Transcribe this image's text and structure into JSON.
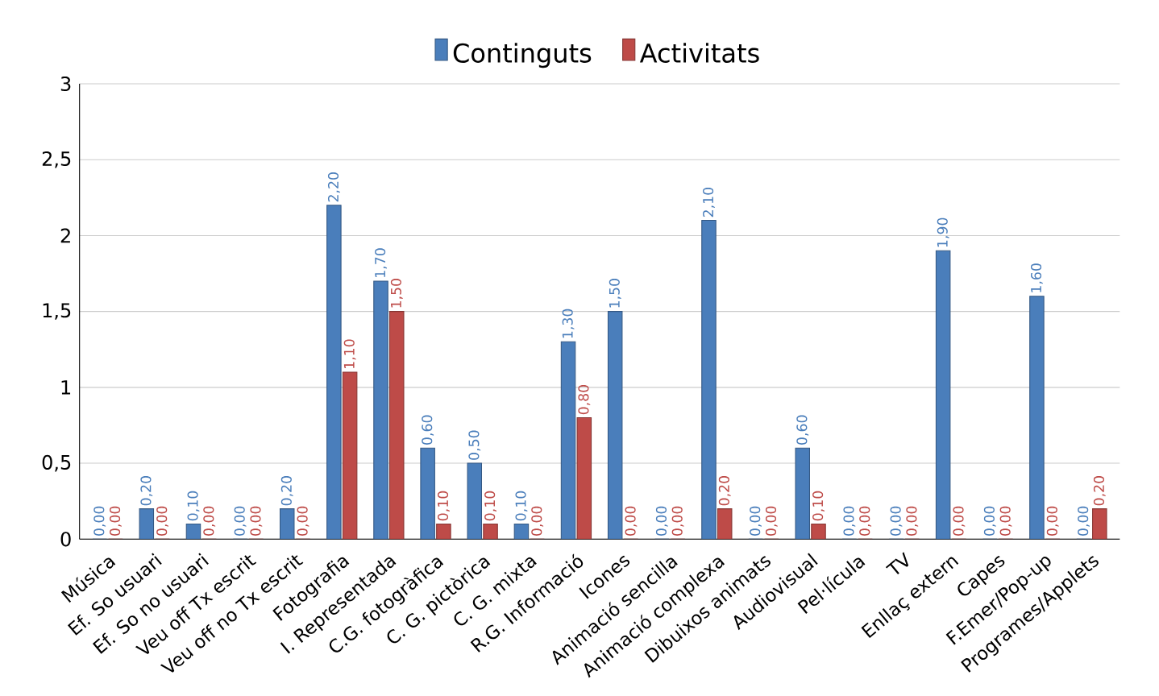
{
  "chart_data": {
    "type": "bar",
    "categories": [
      "Música",
      "Ef. So usuari",
      "Ef. So no usuari",
      "Veu off Tx escrit",
      "Veu off no Tx escrit",
      "Fotografia",
      "I. Representada",
      "C.G. fotogràfica",
      "C. G. pictòrica",
      "C. G. mixta",
      "R.G. Informació",
      "Icones",
      "Animació sencilla",
      "Animació complexa",
      "Dibuixos animats",
      "Audiovisual",
      "Pel·lícula",
      "TV",
      "Enllaç extern",
      "Capes",
      "F.Emer/Pop-up",
      "Programes/Applets"
    ],
    "series": [
      {
        "name": "Continguts",
        "color": "#4a7ebb",
        "values": [
          0,
          0.2,
          0.1,
          0,
          0.2,
          2.2,
          1.7,
          0.6,
          0.5,
          0.1,
          1.3,
          1.5,
          0,
          2.1,
          0,
          0.6,
          0,
          0,
          1.9,
          0,
          1.6,
          0
        ],
        "value_labels": [
          "0,00",
          "0,20",
          "0,10",
          "0,00",
          "0,20",
          "2,20",
          "1,70",
          "0,60",
          "0,50",
          "0,10",
          "1,30",
          "1,50",
          "0,00",
          "2,10",
          "0,00",
          "0,60",
          "0,00",
          "0,00",
          "1,90",
          "0,00",
          "1,60",
          "0,00"
        ]
      },
      {
        "name": "Activitats",
        "color": "#be4b48",
        "values": [
          0,
          0,
          0,
          0,
          0,
          1.1,
          1.5,
          0.1,
          0.1,
          0,
          0.8,
          0,
          0,
          0.2,
          0,
          0.1,
          0,
          0,
          0,
          0,
          0,
          0.2
        ],
        "value_labels": [
          "0,00",
          "0,00",
          "0,00",
          "0,00",
          "0,00",
          "1,10",
          "1,50",
          "0,10",
          "0,10",
          "0,00",
          "0,80",
          "0,00",
          "0,00",
          "0,20",
          "0,00",
          "0,10",
          "0,00",
          "0,00",
          "0,00",
          "0,00",
          "0,00",
          "0,20"
        ]
      }
    ],
    "ylim": [
      0,
      3
    ],
    "yticks": [
      0,
      {
        "value": 0.5,
        "label": "0,5"
      },
      1,
      {
        "value": 1.5,
        "label": "1,5"
      },
      2,
      {
        "value": 2.5,
        "label": "2,5"
      },
      3
    ],
    "grid": "y",
    "legend": "top"
  }
}
